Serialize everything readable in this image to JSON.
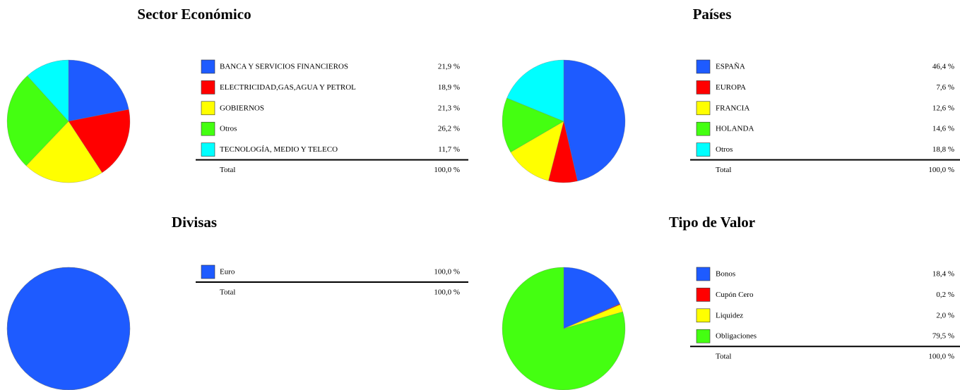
{
  "chart_data": [
    {
      "type": "pie",
      "title": "Sector Económico",
      "categories": [
        "BANCA Y SERVICIOS FINANCIEROS",
        "ELECTRICIDAD,GAS,AGUA Y PETROL",
        "GOBIERNOS",
        "Otros",
        "TECNOLOGÍA, MEDIO Y TELECO"
      ],
      "values": [
        21.9,
        18.9,
        21.3,
        26.2,
        11.7
      ],
      "value_labels": [
        "21,9 %",
        "18,9 %",
        "21,3 %",
        "26,2 %",
        "11,7 %"
      ],
      "colors": [
        "#1e5bff",
        "#ff0000",
        "#ffff00",
        "#44ff11",
        "#00ffff"
      ],
      "total_label": "Total",
      "total_value_label": "100,0 %"
    },
    {
      "type": "pie",
      "title": "Países",
      "categories": [
        "ESPAÑA",
        "EUROPA",
        "FRANCIA",
        "HOLANDA",
        "Otros"
      ],
      "values": [
        46.4,
        7.6,
        12.6,
        14.6,
        18.8
      ],
      "value_labels": [
        "46,4 %",
        "7,6 %",
        "12,6 %",
        "14,6 %",
        "18,8 %"
      ],
      "colors": [
        "#1e5bff",
        "#ff0000",
        "#ffff00",
        "#44ff11",
        "#00ffff"
      ],
      "total_label": "Total",
      "total_value_label": "100,0 %"
    },
    {
      "type": "pie",
      "title": "Divisas",
      "categories": [
        "Euro"
      ],
      "values": [
        100.0
      ],
      "value_labels": [
        "100,0 %"
      ],
      "colors": [
        "#1e5bff"
      ],
      "total_label": "Total",
      "total_value_label": "100,0 %"
    },
    {
      "type": "pie",
      "title": "Tipo de Valor",
      "categories": [
        "Bonos",
        "Cupón Cero",
        "Liquidez",
        "Obligaciones"
      ],
      "values": [
        18.4,
        0.2,
        2.0,
        79.5
      ],
      "value_labels": [
        "18,4 %",
        "0,2 %",
        "2,0 %",
        "79,5 %"
      ],
      "colors": [
        "#1e5bff",
        "#ff0000",
        "#ffff00",
        "#44ff11"
      ],
      "total_label": "Total",
      "total_value_label": "100,0 %"
    }
  ]
}
